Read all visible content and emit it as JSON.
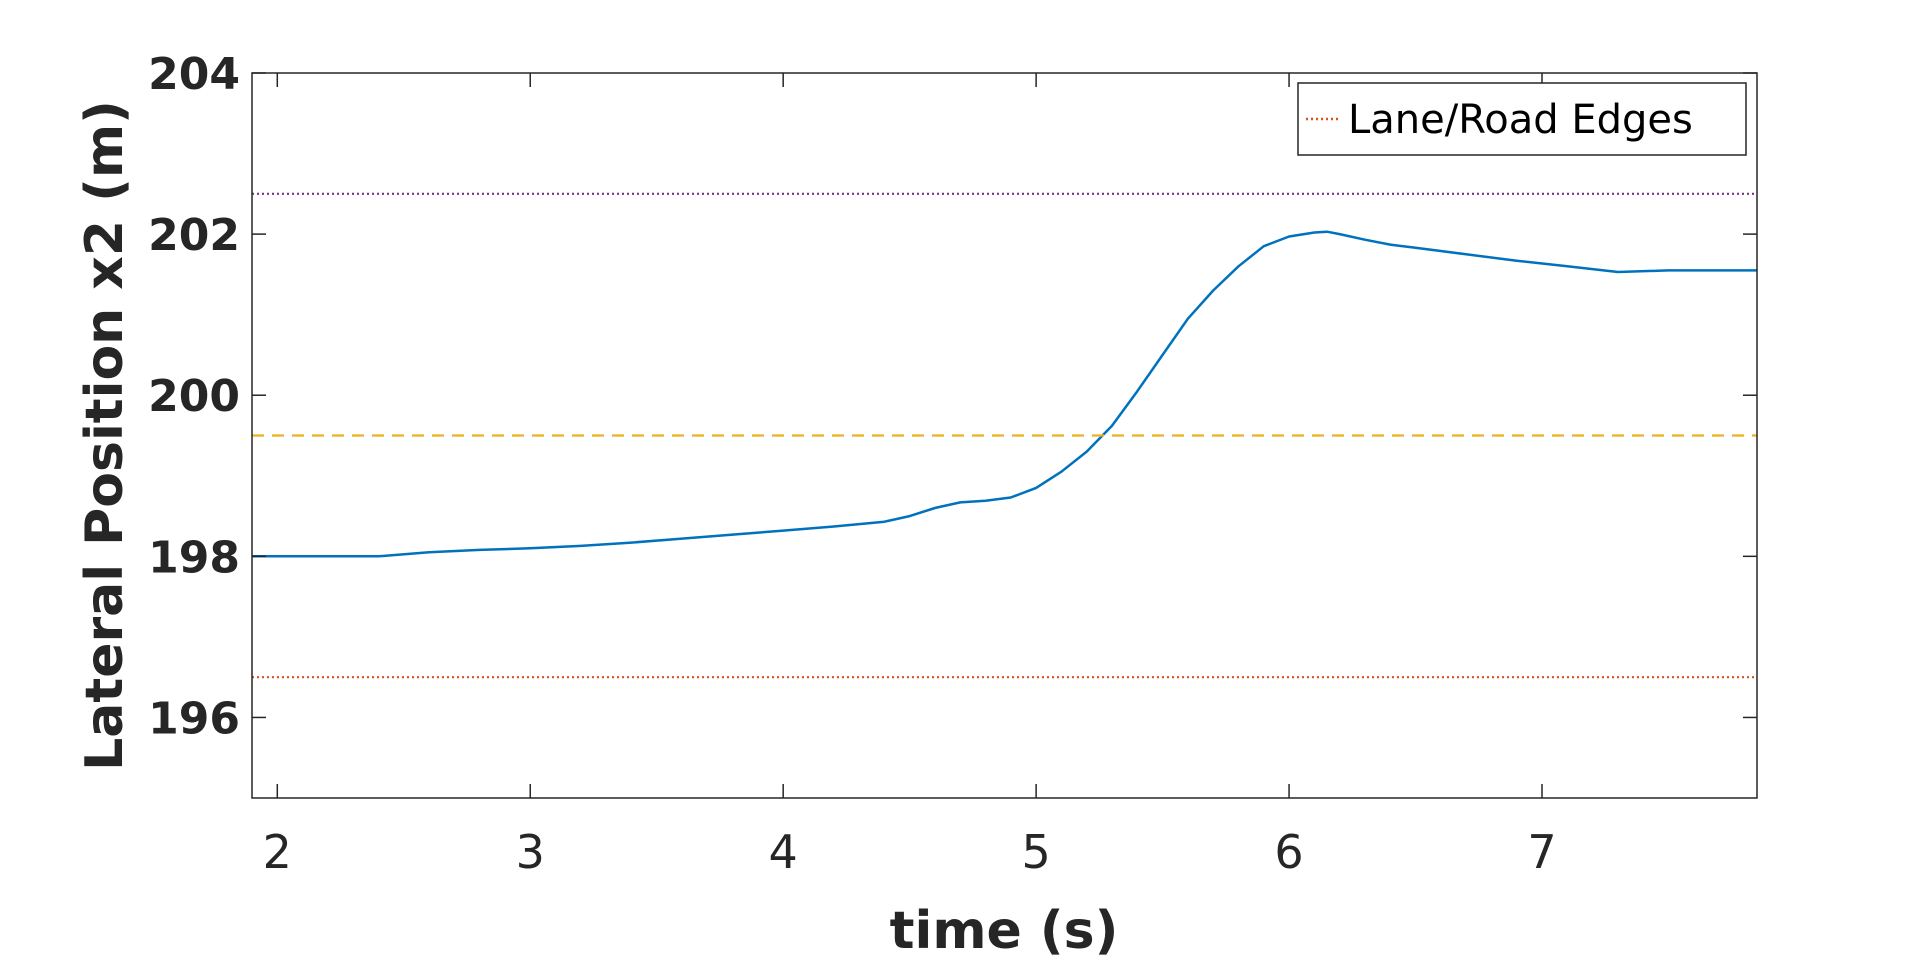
{
  "chart_data": {
    "type": "line",
    "title": "",
    "xlabel": "time (s)",
    "ylabel": "Lateral Position x2 (m)",
    "xlim": [
      1.9,
      7.85
    ],
    "ylim": [
      195,
      204
    ],
    "xticks": [
      2,
      3,
      4,
      5,
      6,
      7
    ],
    "yticks": [
      196,
      198,
      200,
      202,
      204
    ],
    "grid": false,
    "legend": {
      "position": "top-right",
      "entries": [
        "Lane/Road Edges"
      ]
    },
    "series": [
      {
        "style": "solid",
        "color": "#0072BD",
        "x": [
          1.9,
          2.0,
          2.2,
          2.4,
          2.6,
          2.8,
          3.0,
          3.2,
          3.4,
          3.6,
          3.8,
          4.0,
          4.2,
          4.4,
          4.5,
          4.6,
          4.7,
          4.8,
          4.9,
          5.0,
          5.1,
          5.2,
          5.3,
          5.4,
          5.5,
          5.6,
          5.7,
          5.8,
          5.9,
          6.0,
          6.1,
          6.15,
          6.2,
          6.3,
          6.4,
          6.5,
          6.7,
          6.9,
          7.1,
          7.3,
          7.5,
          7.7,
          7.85
        ],
        "y": [
          198.0,
          198.0,
          198.0,
          198.0,
          198.05,
          198.08,
          198.1,
          198.13,
          198.17,
          198.22,
          198.27,
          198.32,
          198.37,
          198.43,
          198.5,
          198.6,
          198.67,
          198.69,
          198.73,
          198.85,
          199.05,
          199.3,
          199.62,
          200.05,
          200.5,
          200.95,
          201.3,
          201.6,
          201.85,
          201.97,
          202.02,
          202.03,
          202.0,
          201.93,
          201.87,
          201.83,
          201.75,
          201.67,
          201.6,
          201.53,
          201.55,
          201.55,
          201.55
        ]
      },
      {
        "name": "Lane/Road Edges",
        "style": "dotted",
        "color": "#D95319",
        "x": [
          1.9,
          7.85
        ],
        "y": [
          196.5,
          196.5
        ]
      },
      {
        "style": "dashed",
        "color": "#EDB120",
        "x": [
          1.9,
          7.85
        ],
        "y": [
          199.5,
          199.5
        ]
      },
      {
        "style": "dotted",
        "color": "#7E2F8E",
        "x": [
          1.9,
          7.85
        ],
        "y": [
          202.5,
          202.5
        ]
      }
    ]
  }
}
